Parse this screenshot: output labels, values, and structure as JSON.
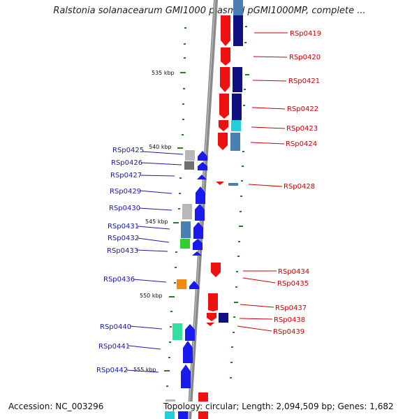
{
  "title": "Ralstonia solanacearum GMI1000 plasmid pGMI1000MP, complete ...",
  "footer": {
    "accession": "Accession: NC_003296",
    "stats": "Topology: circular; Length: 2,094,509 bp; Genes: 1,682"
  },
  "ticks": [
    "535 kbp",
    "540 kbp",
    "545 kbp",
    "550 kbp",
    "555 kbp"
  ],
  "left_labels": [
    "RSp0425",
    "RSp0426",
    "RSp0427",
    "RSp0429",
    "RSp0430",
    "RSp0431",
    "RSp0432",
    "RSp0433",
    "RSp0436",
    "RSp0440",
    "RSp0441",
    "RSp0442"
  ],
  "right_labels": [
    "RSp0419",
    "RSp0420",
    "RSp0421",
    "RSp0422",
    "RSp0423",
    "RSp0424",
    "RSp0428",
    "RSp0434",
    "RSp0435",
    "RSp0437",
    "RSp0438",
    "RSp0439"
  ],
  "colors": {
    "backbone": "#8a8a8a",
    "forward_gene": "#1a1aee",
    "reverse_gene": "#ee1111",
    "navy": "#101080",
    "steel": "#4a7fb5",
    "cyan": "#22d0d8",
    "green": "#33cc33",
    "orange": "#f08a10",
    "mint": "#33e0a0",
    "gray": "#b8b8b8",
    "darkgray": "#707070",
    "tick": "#2a7a2a",
    "left_label": "#1a1aa6",
    "right_label": "#cc0000"
  }
}
